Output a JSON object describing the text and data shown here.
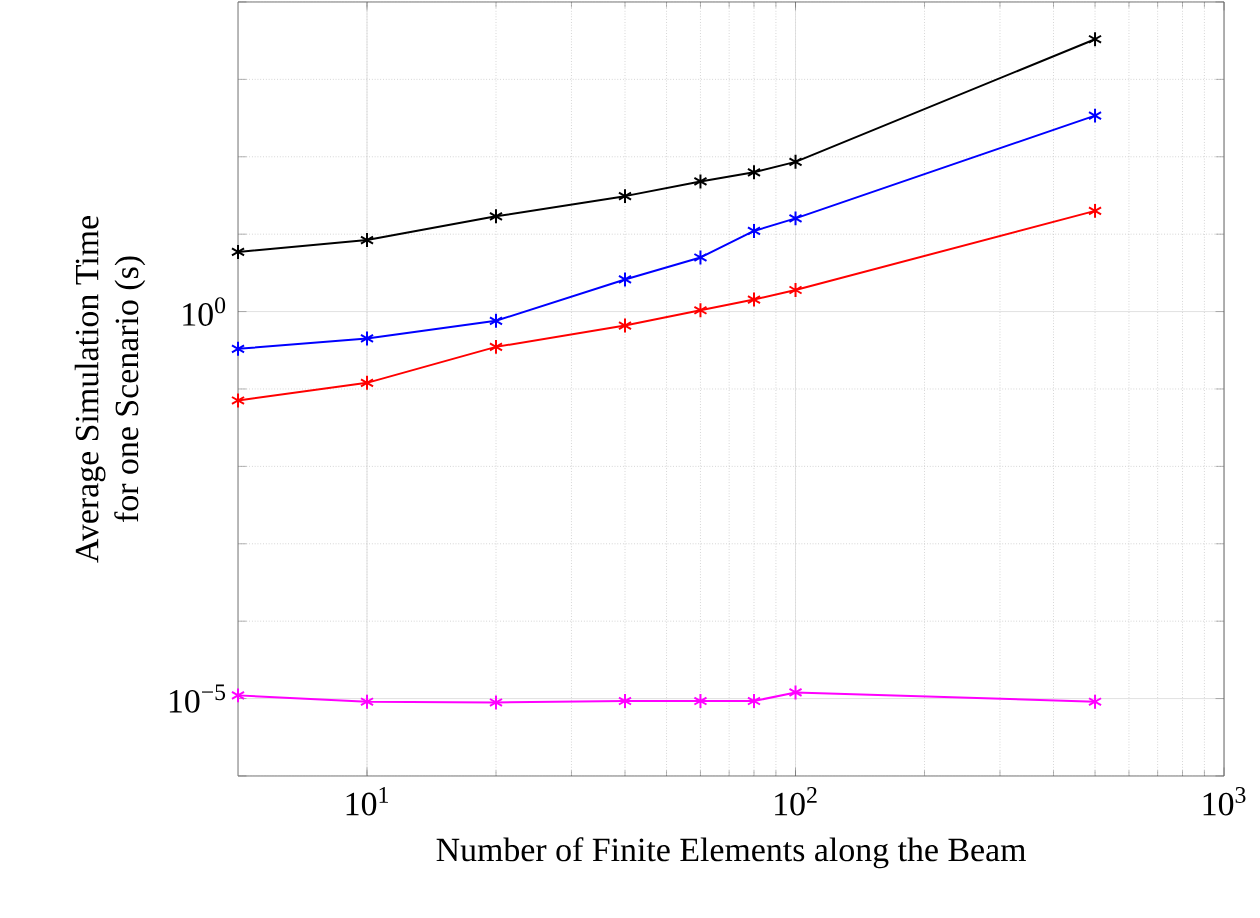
{
  "chart_data": {
    "type": "line",
    "xlabel": "Number of Finite Elements along the Beam",
    "ylabel": "Average Simulation Time\nfor one Scenario (s)",
    "x": [
      5,
      10,
      20,
      40,
      60,
      80,
      100,
      500
    ],
    "series": [
      {
        "color": "#000000",
        "values": [
          5.9,
          8.4,
          17,
          31,
          48,
          63,
          86,
          3300
        ]
      },
      {
        "color": "#0000ff",
        "values": [
          0.33,
          0.45,
          0.76,
          2.6,
          5.0,
          11,
          16,
          340
        ]
      },
      {
        "color": "#ff0000",
        "values": [
          0.071,
          0.12,
          0.35,
          0.66,
          1.04,
          1.43,
          1.9,
          20
        ]
      },
      {
        "color": "#ff00ff",
        "values": [
          1.1e-05,
          9.1e-06,
          8.9e-06,
          9.3e-06,
          9.3e-06,
          9.3e-06,
          1.2e-05,
          9.1e-06
        ]
      }
    ],
    "log": "xy",
    "grid": true,
    "marker": "cross",
    "line_style": "solid",
    "xlim": [
      5,
      1000
    ],
    "ylim": [
      1e-06,
      10000
    ],
    "xticks": [
      {
        "value": 10,
        "label": "10$^{1}$"
      },
      {
        "value": 100,
        "label": "10$^{2}$"
      },
      {
        "value": 1000,
        "label": "10$^{3}$"
      }
    ],
    "yticks": [
      {
        "value": 1e-06,
        "label": null
      },
      {
        "value": 1e-05,
        "label": "10$^{−5}$"
      },
      {
        "value": 0.0001,
        "label": null
      },
      {
        "value": 0.001,
        "label": null
      },
      {
        "value": 0.01,
        "label": null
      },
      {
        "value": 0.1,
        "label": null
      },
      {
        "value": 1,
        "label": "10$^{0}$"
      },
      {
        "value": 10,
        "label": null
      },
      {
        "value": 100,
        "label": null
      },
      {
        "value": 1000,
        "label": null
      },
      {
        "value": 10000,
        "label": null
      }
    ]
  }
}
